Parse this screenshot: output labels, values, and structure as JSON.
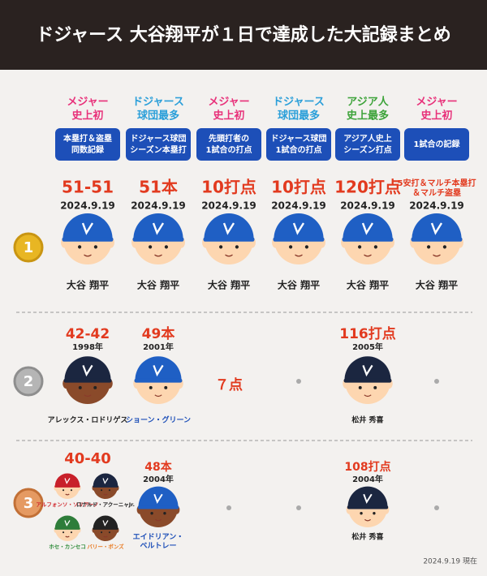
{
  "header": {
    "title": "ドジャース 大谷翔平が１日で達成した大記録まとめ"
  },
  "columns": [
    {
      "tag": [
        "メジャー",
        "史上初"
      ],
      "tag_color": "#e8317a",
      "record": [
        "本塁打＆盗塁",
        "同数記録"
      ]
    },
    {
      "tag": [
        "ドジャース",
        "球団最多"
      ],
      "tag_color": "#2b9fd9",
      "record": [
        "ドジャース球団",
        "シーズン本塁打"
      ]
    },
    {
      "tag": [
        "メジャー",
        "史上初"
      ],
      "tag_color": "#e8317a",
      "record": [
        "先頭打者の",
        "1試合の打点"
      ]
    },
    {
      "tag": [
        "ドジャース",
        "球団最多"
      ],
      "tag_color": "#2b9fd9",
      "record": [
        "ドジャース球団",
        "1試合の打点"
      ]
    },
    {
      "tag": [
        "アジア人",
        "史上最多"
      ],
      "tag_color": "#3da33a",
      "record": [
        "アジア人史上",
        "シーズン打点"
      ]
    },
    {
      "tag": [
        "メジャー",
        "史上初"
      ],
      "tag_color": "#e8317a",
      "record": [
        "1試合の記録"
      ]
    }
  ],
  "ranks": [
    {
      "medal": "1",
      "entries": [
        {
          "value": [
            "51-51"
          ],
          "date": "2024.9.19",
          "name": [
            "大谷 翔平"
          ]
        },
        {
          "value": [
            "51本"
          ],
          "date": "2024.9.19",
          "name": [
            "大谷 翔平"
          ]
        },
        {
          "value": [
            "10打点"
          ],
          "date": "2024.9.19",
          "name": [
            "大谷 翔平"
          ]
        },
        {
          "value": [
            "10打点"
          ],
          "date": "2024.9.19",
          "name": [
            "大谷 翔平"
          ]
        },
        {
          "value": [
            "120打点"
          ],
          "date": "2024.9.19",
          "name": [
            "大谷 翔平"
          ]
        },
        {
          "value": [
            "5安打＆マルチ本塁打",
            "＆マルチ盗塁"
          ],
          "date": "2024.9.19",
          "name": [
            "大谷 翔平"
          ]
        }
      ]
    },
    {
      "medal": "2",
      "entries": [
        {
          "value": [
            "42-42"
          ],
          "date": "1998年",
          "name": [
            "アレックス・ロドリゲス"
          ],
          "name_color": "#222222"
        },
        {
          "value": [
            "49本"
          ],
          "date": "2001年",
          "name": [
            "ショーン・グリーン"
          ],
          "name_color": "#1d4fb8"
        },
        {
          "value": [
            "７点"
          ]
        },
        null,
        {
          "value": [
            "116打点"
          ],
          "date": "2005年",
          "name": [
            "松井 秀喜"
          ],
          "name_color": "#222222"
        },
        null
      ]
    },
    {
      "medal": "3",
      "entries": [
        {
          "value": [
            "40-40"
          ],
          "players": [
            {
              "name": "アルフォンソ・ソリアーノ",
              "color": "#d0282e"
            },
            {
              "name": "ロナルド・アクーニャJr.",
              "color": "#222222"
            },
            {
              "name": "ホセ・カンセコ",
              "color": "#2e8b3a"
            },
            {
              "name": "バリー・ボンズ",
              "color": "#e8781e"
            }
          ]
        },
        {
          "value": [
            "48本"
          ],
          "date": "2004年",
          "name": [
            "エイドリアン・",
            "ベルトレー"
          ],
          "name_color": "#1d4fb8"
        },
        null,
        null,
        {
          "value": [
            "108打点"
          ],
          "date": "2004年",
          "name": [
            "松井 秀喜"
          ],
          "name_color": "#222222"
        },
        null
      ]
    }
  ],
  "footer": {
    "note": "2024.9.19 現在"
  }
}
